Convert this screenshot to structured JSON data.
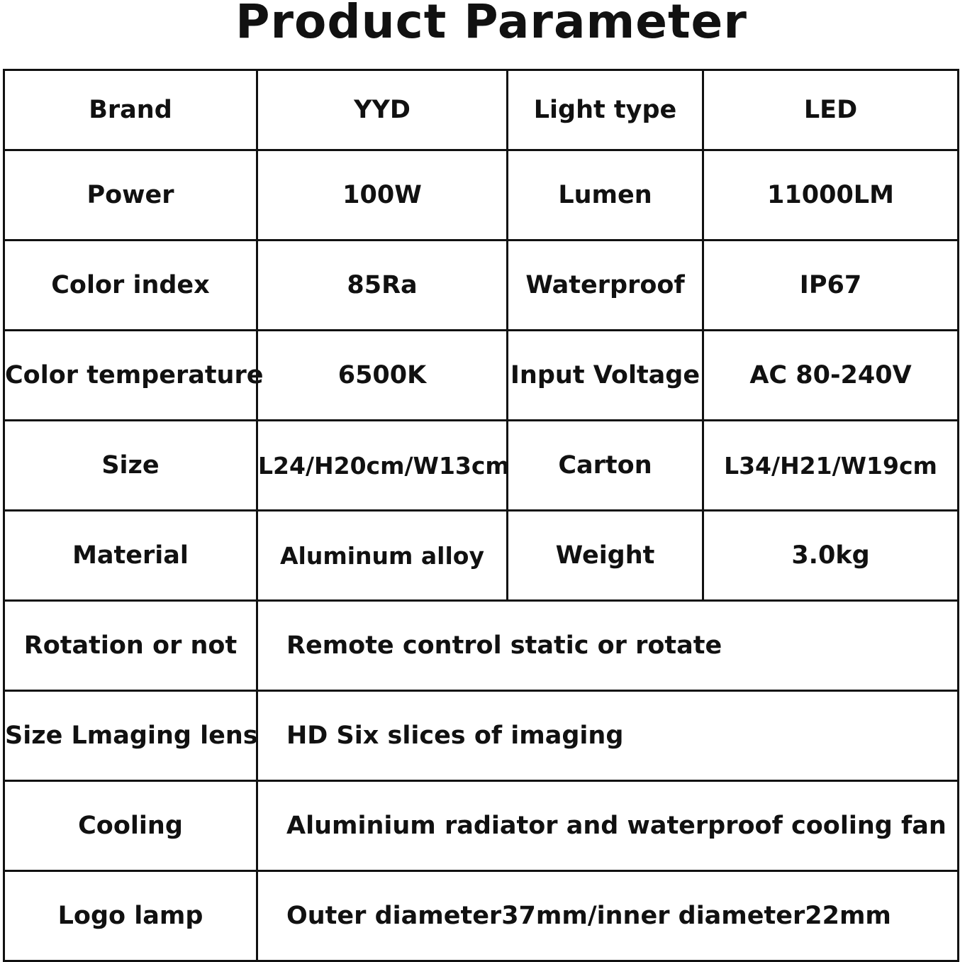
{
  "title": "Product Parameter",
  "rows4": [
    [
      "Brand",
      "YYD",
      "Light type",
      "LED"
    ],
    [
      "Power",
      "100W",
      "Lumen",
      "11000LM"
    ],
    [
      "Color index",
      "85Ra",
      "Waterproof",
      "IP67"
    ],
    [
      "Color temperature",
      "6500K",
      "Input Voltage",
      "AC 80-240V"
    ],
    [
      "Size",
      "L24/H20cm/W13cm",
      "Carton",
      "L34/H21/W19cm"
    ],
    [
      "Material",
      "Aluminum alloy",
      "Weight",
      "3.0kg"
    ]
  ],
  "rows2": [
    [
      "Rotation or not",
      "Remote control static or rotate"
    ],
    [
      "Size Lmaging lens",
      "HD Six slices of imaging"
    ],
    [
      "Cooling",
      "Aluminium radiator and waterproof cooling fan"
    ],
    [
      "Logo lamp",
      "Outer diameter37mm/inner diameter22mm"
    ]
  ]
}
